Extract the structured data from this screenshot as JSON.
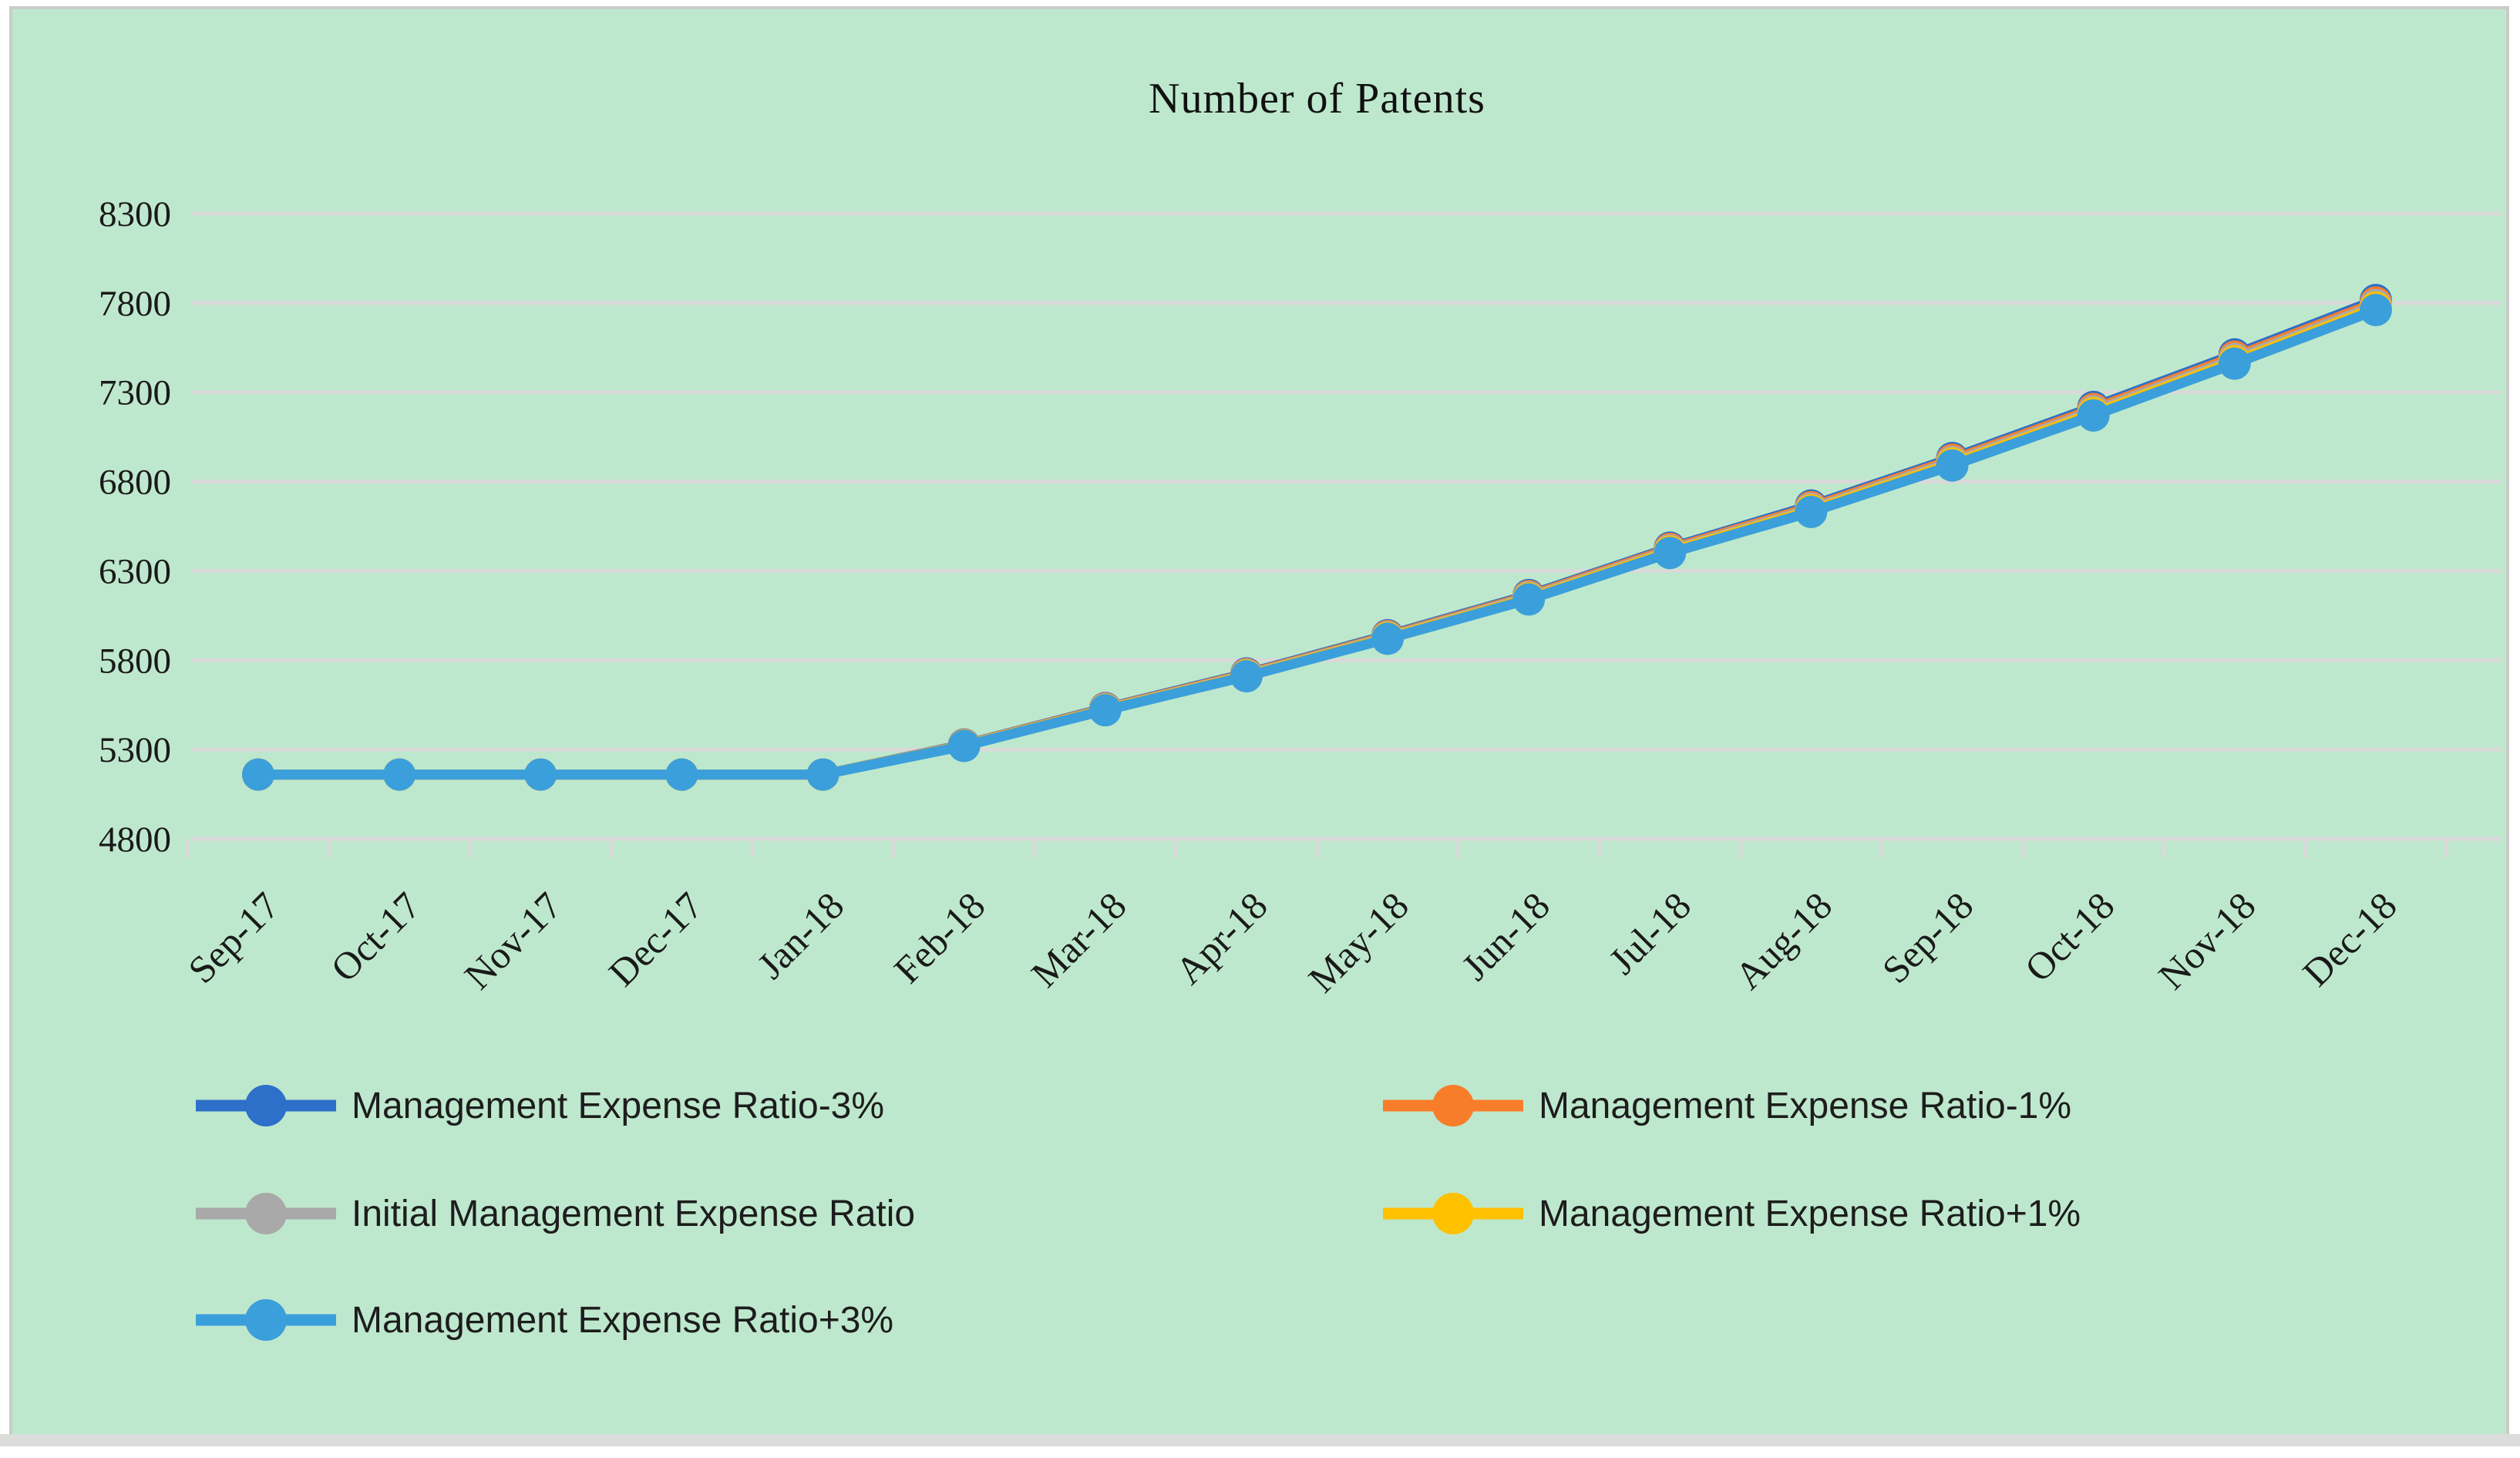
{
  "chart_data": {
    "type": "line",
    "title": "Number of Patents",
    "categories": [
      "Sep-17",
      "Oct-17",
      "Nov-17",
      "Dec-17",
      "Jan-18",
      "Feb-18",
      "Mar-18",
      "Apr-18",
      "May-18",
      "Jun-18",
      "Jul-18",
      "Aug-18",
      "Sep-18",
      "Oct-18",
      "Nov-18",
      "Dec-18"
    ],
    "y_ticks": [
      4800,
      5300,
      5800,
      6300,
      6800,
      7300,
      7800,
      8300
    ],
    "ylim": [
      4800,
      8300
    ],
    "grid": true,
    "legend_position": "bottom, two columns",
    "series": [
      {
        "name": "Management Expense Ratio-3%",
        "color": "#2D6FC9",
        "values": [
          5160,
          5160,
          5160,
          5160,
          5160,
          5328,
          5532,
          5726,
          5940,
          6165,
          6430,
          6666,
          6932,
          7218,
          7512,
          7816
        ]
      },
      {
        "name": "Management Expense Ratio-1%",
        "color": "#F87D2A",
        "values": [
          5160,
          5160,
          5160,
          5160,
          5160,
          5326,
          5529,
          5722,
          5935,
          6159,
          6423,
          6657,
          6922,
          7206,
          7499,
          7802
        ]
      },
      {
        "name": "Initial Management Expense Ratio",
        "color": "#A9A9A9",
        "values": [
          5160,
          5160,
          5160,
          5160,
          5160,
          5324,
          5526,
          5718,
          5930,
          6153,
          6415,
          6648,
          6911,
          7194,
          7486,
          7788
        ]
      },
      {
        "name": "Management Expense Ratio+1%",
        "color": "#FFC000",
        "values": [
          5160,
          5160,
          5160,
          5160,
          5160,
          5322,
          5523,
          5714,
          5925,
          6146,
          6408,
          6639,
          6901,
          7182,
          7473,
          7774
        ]
      },
      {
        "name": "Management Expense Ratio+3%",
        "color": "#3B9FDB",
        "values": [
          5160,
          5160,
          5160,
          5160,
          5160,
          5320,
          5520,
          5710,
          5920,
          6140,
          6400,
          6630,
          6890,
          7170,
          7460,
          7760
        ]
      }
    ]
  },
  "colors": {
    "background": "#BEE8CD",
    "gridline": "#D9D9D9",
    "axis_text": "#1a1a1a",
    "title_text": "#111111",
    "card_border": "#C9CCC9",
    "bottom_strip": "#DBDDDB"
  }
}
